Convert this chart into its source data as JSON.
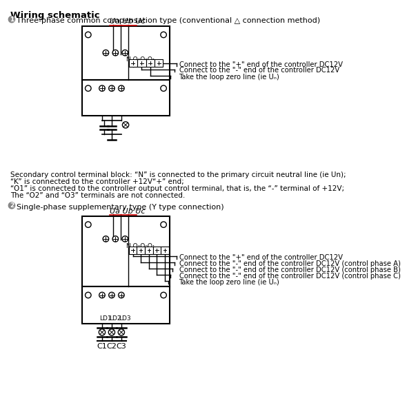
{
  "title": "Wiring schematic",
  "section1_label": "1",
  "section1_title": " Three-phase common compensation type (conventional △ connection method)",
  "section2_label": "2",
  "section2_title": " Single-phase supplementary type (Y type connection)",
  "ua_ub_uc_label": "Ua Ub Uc",
  "N_label": "N O₀O₀O₁",
  "diagram1_annotations": [
    "Connect to the \"+\" end of the controller DC12V",
    "Connect to the \"-\" end of the controller DC12V",
    "Take the loop zero line (ie Uₙ)"
  ],
  "diagram2_annotations": [
    "Connect to the \"+\" end of the controller DC12V",
    "Connect to the \"-\" end of the controller DC12V (control phase A)",
    "Connect to the \"-\" end of the controller DC12V (control phase B)",
    "Connect to the \"-\" end of the controller DC12V (control phase C)",
    "Take the loop zero line (ie Uₙ)"
  ],
  "notes": [
    "Secondary control terminal block: “N” is connected to the primary circuit neutral line (ie Un);",
    "“K” is connected to the controller +12V“+” end;",
    "“O1” is connected to the controller output control terminal, that is, the “-” terminal of +12V;",
    "The “O2” and “O3” terminals are not connected."
  ],
  "C_labels": [
    "C1",
    "C2",
    "C3"
  ],
  "bg_color": "#ffffff",
  "line_color": "#000000",
  "red_color": "#cc0000",
  "text_color": "#000000"
}
